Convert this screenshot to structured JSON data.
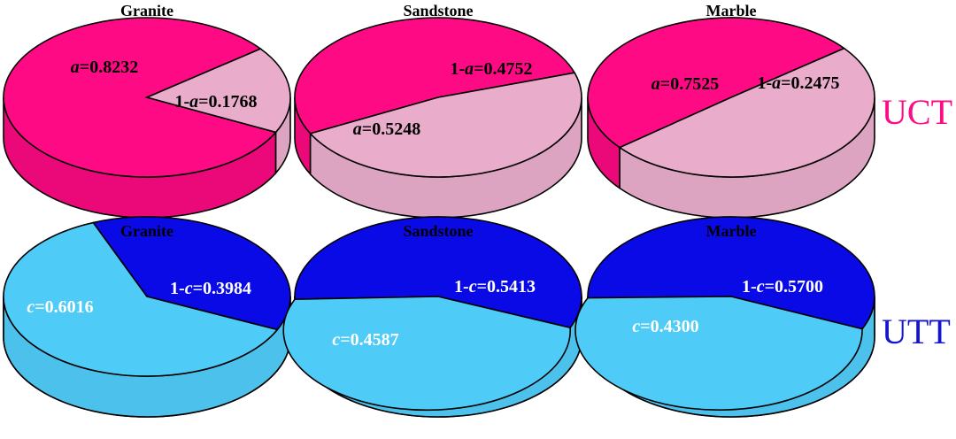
{
  "chart_data": [
    {
      "type": "pie",
      "row_label": "UCT",
      "colors": {
        "primary": "#FF0A85",
        "secondary": "#E9ADCB",
        "text": "#000000",
        "row_label": "#FF0A85"
      },
      "pies": [
        {
          "title": "Granite",
          "slices": [
            {
              "symbol": "a",
              "value": 0.8232,
              "text": "=0.8232"
            },
            {
              "prefix": "1-",
              "symbol": "a",
              "value": 0.1768,
              "text": "=0.1768"
            }
          ]
        },
        {
          "title": "Sandstone",
          "slices": [
            {
              "symbol": "a",
              "value": 0.5248,
              "text": "=0.5248"
            },
            {
              "prefix": "1-",
              "symbol": "a",
              "value": 0.4752,
              "text": "=0.4752"
            }
          ]
        },
        {
          "title": "Marble",
          "slices": [
            {
              "symbol": "a",
              "value": 0.7525,
              "text": "=0.7525"
            },
            {
              "prefix": "1-",
              "symbol": "a",
              "value": 0.2475,
              "text": "=0.2475"
            }
          ]
        }
      ]
    },
    {
      "type": "pie",
      "row_label": "UTT",
      "colors": {
        "primary": "#0A0AE6",
        "secondary": "#4FCBF7",
        "text": "#ffffff",
        "row_label": "#1414D2"
      },
      "pies": [
        {
          "title": "Granite",
          "slices": [
            {
              "symbol": "c",
              "value": 0.6016,
              "text": "=0.6016"
            },
            {
              "prefix": "1-",
              "symbol": "c",
              "value": 0.3984,
              "text": "=0.3984"
            }
          ]
        },
        {
          "title": "Sandstone",
          "slices": [
            {
              "symbol": "c",
              "value": 0.4587,
              "text": "=0.4587"
            },
            {
              "prefix": "1-",
              "symbol": "c",
              "value": 0.5413,
              "text": "=0.5413"
            }
          ]
        },
        {
          "title": "Marble",
          "slices": [
            {
              "symbol": "c",
              "value": 0.43,
              "text": "=0.4300"
            },
            {
              "prefix": "1-",
              "symbol": "c",
              "value": 0.57,
              "text": "=0.5700"
            }
          ]
        }
      ]
    }
  ]
}
